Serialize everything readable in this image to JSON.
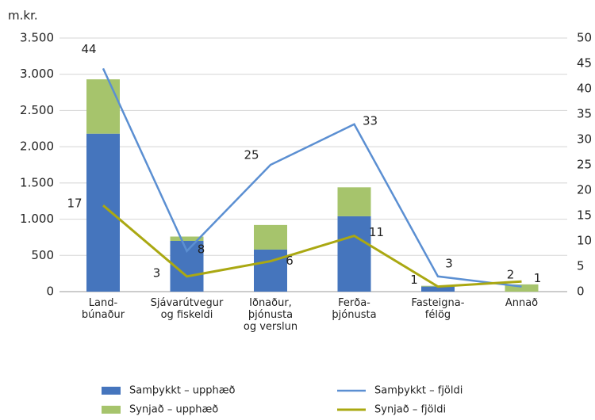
{
  "chart_data": {
    "type": "bar-line",
    "y_axis_label": "m.kr.",
    "categories": [
      [
        "Land-",
        "búnaður"
      ],
      [
        "Sjávarútvegur",
        "og fiskeldi"
      ],
      [
        "Iðnaður,",
        "þjónusta",
        "og verslun"
      ],
      [
        "Ferða-",
        "þjónusta"
      ],
      [
        "Fasteigna-",
        "félög"
      ],
      [
        "Annað"
      ]
    ],
    "series": [
      {
        "name": "Samþykkt – upphæð",
        "color": "#4575bd",
        "kind": "bar",
        "axis": "y",
        "values": [
          2180,
          700,
          580,
          1040,
          70,
          0
        ]
      },
      {
        "name": "Synjað – upphæð",
        "color": "#a6c46c",
        "kind": "bar",
        "axis": "y",
        "values": [
          750,
          60,
          340,
          400,
          10,
          100
        ]
      },
      {
        "name": "Samþykkt – fjöldi",
        "color": "#5b8fd2",
        "kind": "line",
        "axis": "y2",
        "values": [
          44,
          8,
          25,
          33,
          3,
          1
        ]
      },
      {
        "name": "Synjað – fjöldi",
        "color": "#aaa812",
        "kind": "line",
        "axis": "y2",
        "values": [
          17,
          3,
          6,
          11,
          1,
          2
        ]
      }
    ],
    "ylim": [
      0,
      3500
    ],
    "yticks": [
      0,
      500,
      {
        "value": 1000,
        "label": "1.000"
      },
      {
        "value": 1500,
        "label": "1.500"
      },
      {
        "value": 2000,
        "label": "2.000"
      },
      {
        "value": 2500,
        "label": "2.500"
      },
      {
        "value": 3000,
        "label": "3.000"
      },
      {
        "value": 3500,
        "label": "3.500"
      }
    ],
    "y2lim": [
      0,
      50
    ],
    "y2ticks": [
      0,
      5,
      10,
      15,
      20,
      25,
      30,
      35,
      40,
      45,
      50
    ],
    "grid": true
  }
}
